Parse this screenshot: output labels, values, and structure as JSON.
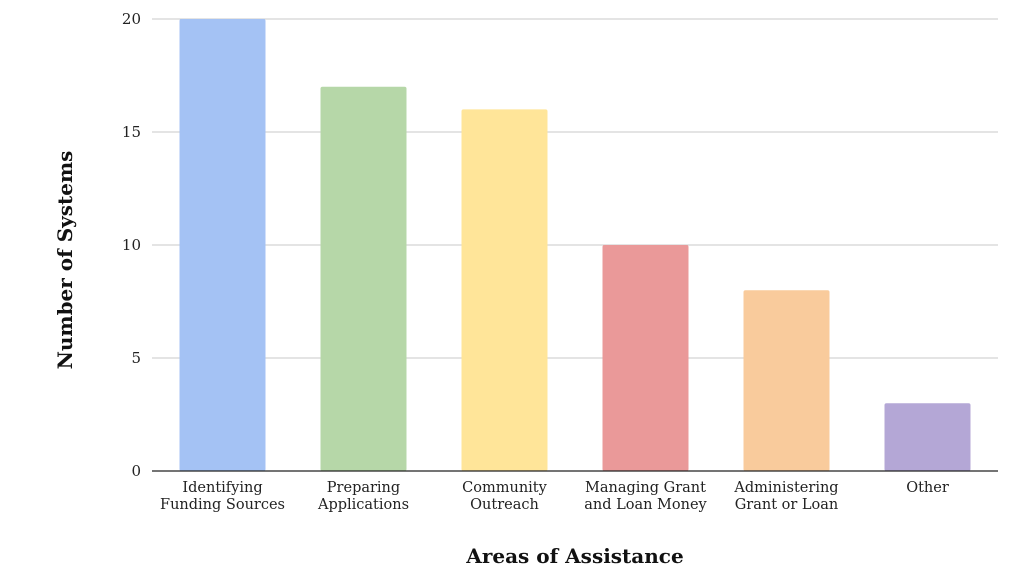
{
  "chart_data": {
    "type": "bar",
    "categories": [
      [
        "Identifying",
        "Funding Sources"
      ],
      [
        "Preparing",
        "Applications"
      ],
      [
        "Community",
        "Outreach"
      ],
      [
        "Managing Grant",
        "and Loan Money"
      ],
      [
        "Administering",
        "Grant or Loan"
      ],
      [
        "Other"
      ]
    ],
    "values": [
      20,
      17,
      16,
      10,
      8,
      3
    ],
    "colors": [
      "#a4c2f4",
      "#b6d7a8",
      "#ffe599",
      "#ea9999",
      "#f9cb9c",
      "#b4a7d6"
    ],
    "xlabel": "Areas of Assistance",
    "ylabel": "Number of Systems",
    "ylim": [
      0,
      20
    ],
    "yticks": [
      0,
      5,
      10,
      15,
      20
    ],
    "grid": true
  }
}
